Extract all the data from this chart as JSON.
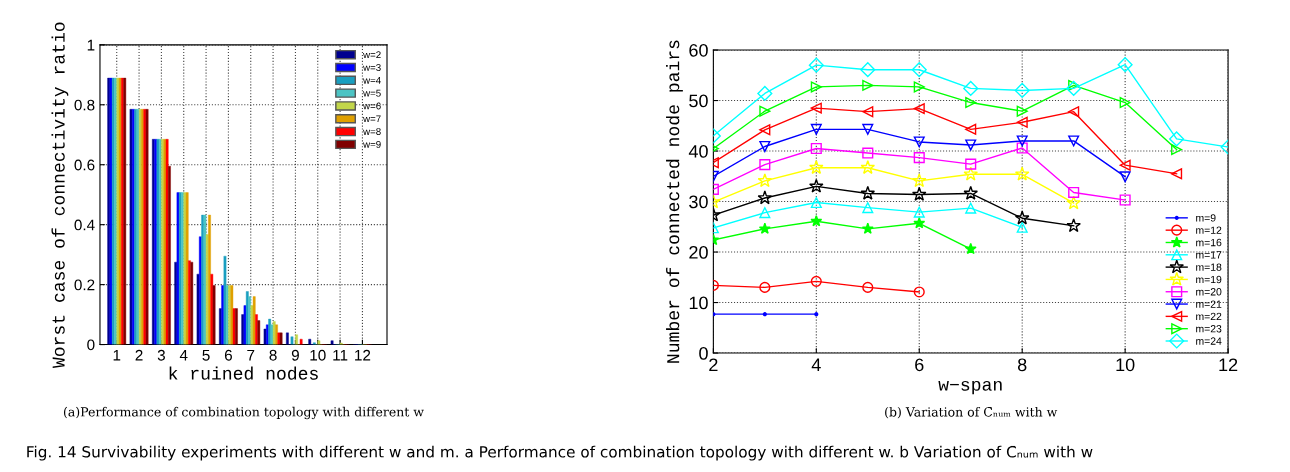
{
  "chart_data": [
    {
      "type": "bar",
      "xlabel": "k ruined nodes",
      "ylabel": "Worst case of connectivity ratio",
      "categories": [
        "1",
        "2",
        "3",
        "4",
        "5",
        "6",
        "7",
        "8",
        "9",
        "10",
        "11",
        "12"
      ],
      "series": [
        {
          "name": "w=2",
          "color": "#00008f",
          "values": [
            0.889,
            0.785,
            0.685,
            0.275,
            0.235,
            0.12,
            0.1,
            0.052,
            0.039,
            0.018,
            0.013,
            0
          ]
        },
        {
          "name": "w=3",
          "color": "#0000ff",
          "values": [
            0.889,
            0.785,
            0.685,
            0.507,
            0.36,
            0.197,
            0.13,
            0.066,
            0,
            0,
            0,
            0
          ]
        },
        {
          "name": "w=4",
          "color": "#1a9fc0",
          "values": [
            0.889,
            0.785,
            0.685,
            0.507,
            0.432,
            0.295,
            0.177,
            0.085,
            0.026,
            0.006,
            0,
            0
          ]
        },
        {
          "name": "w=5",
          "color": "#4cc4c4",
          "values": [
            0.889,
            0.785,
            0.685,
            0.507,
            0.432,
            0.197,
            0.16,
            0.066,
            0,
            0,
            0,
            0
          ]
        },
        {
          "name": "w=6",
          "color": "#c2d64a",
          "values": [
            0.889,
            0.785,
            0.685,
            0.507,
            0.367,
            0.197,
            0.13,
            0.077,
            0.033,
            0.013,
            0.005,
            0
          ]
        },
        {
          "name": "w=7",
          "color": "#e0a000",
          "values": [
            0.889,
            0.785,
            0.685,
            0.507,
            0.432,
            0.197,
            0.16,
            0.066,
            0,
            0,
            0,
            0
          ]
        },
        {
          "name": "w=8",
          "color": "#ff0000",
          "values": [
            0.889,
            0.785,
            0.685,
            0.28,
            0.235,
            0.12,
            0.1,
            0.039,
            0.018,
            0,
            0,
            0
          ]
        },
        {
          "name": "w=9",
          "color": "#800000",
          "values": [
            0.889,
            0.785,
            0.595,
            0.275,
            0.197,
            0.12,
            0.08,
            0.039,
            0,
            0,
            0,
            0
          ]
        }
      ],
      "ylim": [
        0,
        1
      ],
      "yticks": [
        0,
        0.2,
        0.4,
        0.6,
        0.8,
        1
      ],
      "grid": true,
      "legend": "top right",
      "annotations": [
        "(a)Performance of combination topology with different w",
        "Fig. 14 Survivability experiments with different w and m. a Performance of combination topology with different w. b Variation of C̄ₙᵤₘ with w"
      ]
    },
    {
      "type": "line",
      "xlabel": "w−span",
      "ylabel": "Number of connected node pairs",
      "xlim": [
        2,
        12
      ],
      "xticks": [
        2,
        4,
        6,
        8,
        10,
        12
      ],
      "ylim": [
        0,
        60
      ],
      "yticks": [
        0,
        10,
        20,
        30,
        40,
        50,
        60
      ],
      "grid": true,
      "legend": "right",
      "line_style": "solid",
      "series": [
        {
          "name": "m=9",
          "color": "#0000ff",
          "marker": "point",
          "x": [
            2,
            3,
            4
          ],
          "values": [
            7.7,
            7.7,
            7.7
          ]
        },
        {
          "name": "m=12",
          "color": "#ff0000",
          "marker": "circle",
          "x": [
            2,
            3,
            4,
            5,
            6
          ],
          "values": [
            13.4,
            13.0,
            14.2,
            13.0,
            12.1
          ]
        },
        {
          "name": "m=16",
          "color": "#00ff00",
          "marker": "asterisk",
          "x": [
            2,
            3,
            4,
            5,
            6,
            7
          ],
          "values": [
            22.4,
            24.6,
            26.1,
            24.6,
            25.7,
            20.6
          ]
        },
        {
          "name": "m=17",
          "color": "#00ffff",
          "marker": "triangle",
          "x": [
            2,
            3,
            4,
            5,
            6,
            7,
            8
          ],
          "values": [
            24.8,
            27.8,
            29.8,
            28.8,
            27.9,
            28.7,
            24.9
          ]
        },
        {
          "name": "m=18",
          "color": "#000000",
          "marker": "star",
          "x": [
            2,
            3,
            4,
            5,
            6,
            7,
            8,
            9
          ],
          "values": [
            27.3,
            30.7,
            33.0,
            31.6,
            31.4,
            31.6,
            26.7,
            25.2
          ]
        },
        {
          "name": "m=19",
          "color": "#ffff00",
          "marker": "star",
          "x": [
            2,
            3,
            4,
            5,
            6,
            7,
            8,
            9
          ],
          "values": [
            29.9,
            34.1,
            36.7,
            36.7,
            34.1,
            35.4,
            35.4,
            29.7
          ]
        },
        {
          "name": "m=20",
          "color": "#ff00ff",
          "marker": "square",
          "x": [
            2,
            3,
            4,
            5,
            6,
            7,
            8,
            9,
            10
          ],
          "values": [
            32.4,
            37.3,
            40.5,
            39.6,
            38.7,
            37.4,
            40.6,
            31.8,
            30.3
          ]
        },
        {
          "name": "m=21",
          "color": "#0000ff",
          "marker": "triangle-down",
          "x": [
            2,
            3,
            4,
            5,
            6,
            7,
            8,
            9,
            10
          ],
          "values": [
            35.0,
            40.9,
            44.3,
            44.3,
            41.8,
            41.2,
            42.0,
            42.0,
            34.9
          ]
        },
        {
          "name": "m=22",
          "color": "#ff0000",
          "marker": "triangle-left",
          "x": [
            2,
            3,
            4,
            5,
            6,
            7,
            8,
            9,
            10,
            11
          ],
          "values": [
            37.7,
            44.2,
            48.5,
            47.8,
            48.4,
            44.3,
            45.7,
            47.8,
            37.2,
            35.5
          ]
        },
        {
          "name": "m=23",
          "color": "#00ff00",
          "marker": "triangle-right",
          "x": [
            2,
            3,
            4,
            5,
            6,
            7,
            8,
            9,
            10,
            11
          ],
          "values": [
            40.5,
            47.9,
            52.7,
            53.0,
            52.7,
            49.6,
            47.9,
            53.0,
            49.6,
            40.3
          ]
        },
        {
          "name": "m=24",
          "color": "#00ffff",
          "marker": "diamond",
          "x": [
            2,
            3,
            4,
            5,
            6,
            7,
            8,
            9,
            10,
            11,
            12
          ],
          "values": [
            43.0,
            51.4,
            57.0,
            56.1,
            56.1,
            52.4,
            52.0,
            52.4,
            57.1,
            42.4,
            40.8
          ]
        }
      ],
      "annotations": [
        "(b) Variation of C̄ₙᵤₘ with w"
      ]
    }
  ]
}
